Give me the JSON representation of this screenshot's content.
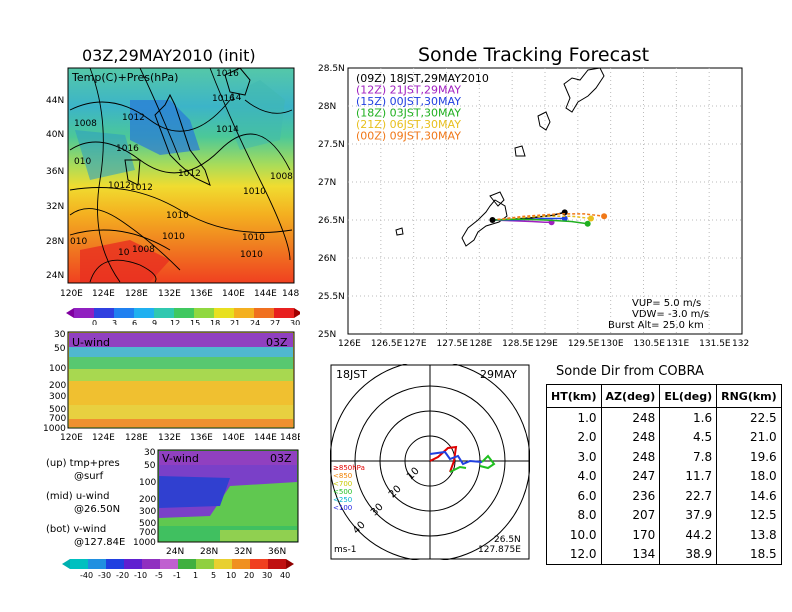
{
  "main_title": "Sonde Tracking Forecast",
  "left_title": "03Z,29MAY2010 (init)",
  "map_panel": {
    "label": "Temp(C)+Pres(hPa)",
    "lat_ticks": [
      "44N",
      "40N",
      "36N",
      "32N",
      "28N",
      "24N"
    ],
    "lon_ticks": [
      "120E",
      "124E",
      "128E",
      "132E",
      "136E",
      "140E",
      "144E",
      "148E"
    ],
    "isobar_labels": [
      "1016",
      "1016",
      "1014",
      "1008",
      "1012",
      "1016",
      "1016",
      "1014",
      "010",
      "1012",
      "1012",
      "1012",
      "1008",
      "1010",
      "1010",
      "010",
      "1010",
      "1010",
      "1008",
      "1010",
      "1010",
      "1010"
    ],
    "colorbar_ticks": [
      "0",
      "3",
      "6",
      "9",
      "12",
      "15",
      "18",
      "21",
      "24",
      "27",
      "30"
    ]
  },
  "u_panel": {
    "label": "U-wind",
    "time": "03Z",
    "y_ticks": [
      "30",
      "50",
      "100",
      "200",
      "300",
      "500",
      "700",
      "1000"
    ],
    "x_ticks": [
      "120E",
      "124E",
      "128E",
      "132E",
      "136E",
      "140E",
      "144E",
      "148E"
    ]
  },
  "v_panel": {
    "label": "V-wind",
    "time": "03Z",
    "y_ticks": [
      "30",
      "50",
      "100",
      "200",
      "300",
      "500",
      "700",
      "1000"
    ],
    "x_ticks": [
      "24N",
      "28N",
      "32N",
      "36N"
    ]
  },
  "notes": {
    "up_1": "(up) tmp+pres",
    "up_2": "@surf",
    "mid_1": "(mid) u-wind",
    "mid_2": "@26.50N",
    "bot_1": "(bot) v-wind",
    "bot_2": "@127.84E"
  },
  "wind_colorbar_ticks": [
    "-40",
    "-30",
    "-20",
    "-10",
    "-5",
    "-1",
    "1",
    "5",
    "10",
    "20",
    "30",
    "40"
  ],
  "track_panel": {
    "legend": [
      {
        "text": "(09Z)  18JST,29MAY2010",
        "color": "#000000"
      },
      {
        "text": "(12Z)  21JST,29MAY",
        "color": "#a020c0"
      },
      {
        "text": "(15Z)  00JST,30MAY",
        "color": "#2040e0"
      },
      {
        "text": "(18Z)  03JST,30MAY",
        "color": "#20b020"
      },
      {
        "text": "(21Z)  06JST,30MAY",
        "color": "#e8c020"
      },
      {
        "text": "(00Z)  09JST,30MAY",
        "color": "#f07818"
      }
    ],
    "info": [
      "VUP=  5.0  m/s",
      "VDW= -3.0  m/s",
      "Burst Alt=  25.0  km"
    ]
  },
  "chart_data": [
    {
      "type": "line",
      "title": "Sonde Tracking Forecast",
      "xlim": [
        126,
        132
      ],
      "ylim": [
        25,
        28.5
      ],
      "x_ticks": [
        "126E",
        "126.5E",
        "127E",
        "127.5E",
        "128E",
        "128.5E",
        "129E",
        "129.5E",
        "130E",
        "130.5E",
        "131E",
        "131.5E",
        "132E"
      ],
      "y_ticks": [
        "25N",
        "25.5N",
        "26N",
        "26.5N",
        "27N",
        "27.5N",
        "28N",
        "28.5N"
      ],
      "grid": true,
      "launch": {
        "lon": 128.2,
        "lat": 26.5
      },
      "series": [
        {
          "name": "(09Z)  18JST,29MAY2010",
          "color": "#000000",
          "x": [
            128.2,
            128.5,
            128.8,
            129.1,
            129.3
          ],
          "y": [
            26.5,
            26.51,
            26.53,
            26.56,
            26.6
          ]
        },
        {
          "name": "(12Z)  21JST,29MAY",
          "color": "#a020c0",
          "x": [
            128.2,
            128.5,
            128.8,
            129.0,
            129.1
          ],
          "y": [
            26.5,
            26.49,
            26.48,
            26.47,
            26.47
          ]
        },
        {
          "name": "(15Z)  00JST,30MAY",
          "color": "#2040e0",
          "x": [
            128.2,
            128.5,
            128.8,
            129.0,
            129.3
          ],
          "y": [
            26.5,
            26.5,
            26.51,
            26.52,
            26.52
          ]
        },
        {
          "name": "(18Z)  03JST,30MAY",
          "color": "#20b020",
          "x": [
            128.2,
            128.6,
            129.0,
            129.4,
            129.65
          ],
          "y": [
            26.5,
            26.51,
            26.5,
            26.48,
            26.45
          ]
        },
        {
          "name": "(21Z)  06JST,30MAY",
          "color": "#e8c020",
          "x": [
            128.2,
            128.6,
            129.0,
            129.4,
            129.7
          ],
          "y": [
            26.5,
            26.53,
            26.55,
            26.55,
            26.52
          ]
        },
        {
          "name": "(00Z)  09JST,30MAY",
          "color": "#f07818",
          "x": [
            128.2,
            128.7,
            129.2,
            129.6,
            129.9
          ],
          "y": [
            26.5,
            26.55,
            26.58,
            26.58,
            26.55
          ]
        }
      ]
    },
    {
      "type": "scatter",
      "subtype": "polar",
      "time_label": "18JST",
      "date_label": "29MAY",
      "range_ring_labels": [
        "10",
        "20",
        "30",
        "40"
      ],
      "altitude_legend": [
        {
          "text": "≥850hPa",
          "color": "#e00000"
        },
        {
          "text": "<850",
          "color": "#f08000"
        },
        {
          "text": "<700",
          "color": "#c8c800"
        },
        {
          "text": "<500",
          "color": "#20c020"
        },
        {
          "text": "<250",
          "color": "#00b0d0"
        },
        {
          "text": "<100",
          "color": "#2020e0"
        }
      ],
      "units": "ms-1",
      "location_1": "26.5N",
      "location_2": "127.875E"
    },
    {
      "type": "table",
      "title": "Sonde Dir from COBRA",
      "columns": [
        "HT(km)",
        "AZ(deg)",
        "EL(deg)",
        "RNG(km)"
      ],
      "rows": [
        [
          "1.0",
          "248",
          "1.6",
          "22.5"
        ],
        [
          "2.0",
          "248",
          "4.5",
          "21.0"
        ],
        [
          "3.0",
          "248",
          "7.8",
          "19.6"
        ],
        [
          "4.0",
          "247",
          "11.7",
          "18.0"
        ],
        [
          "6.0",
          "236",
          "22.7",
          "14.6"
        ],
        [
          "8.0",
          "207",
          "37.9",
          "12.5"
        ],
        [
          "10.0",
          "170",
          "44.2",
          "13.8"
        ],
        [
          "12.0",
          "134",
          "38.9",
          "18.5"
        ]
      ]
    }
  ]
}
